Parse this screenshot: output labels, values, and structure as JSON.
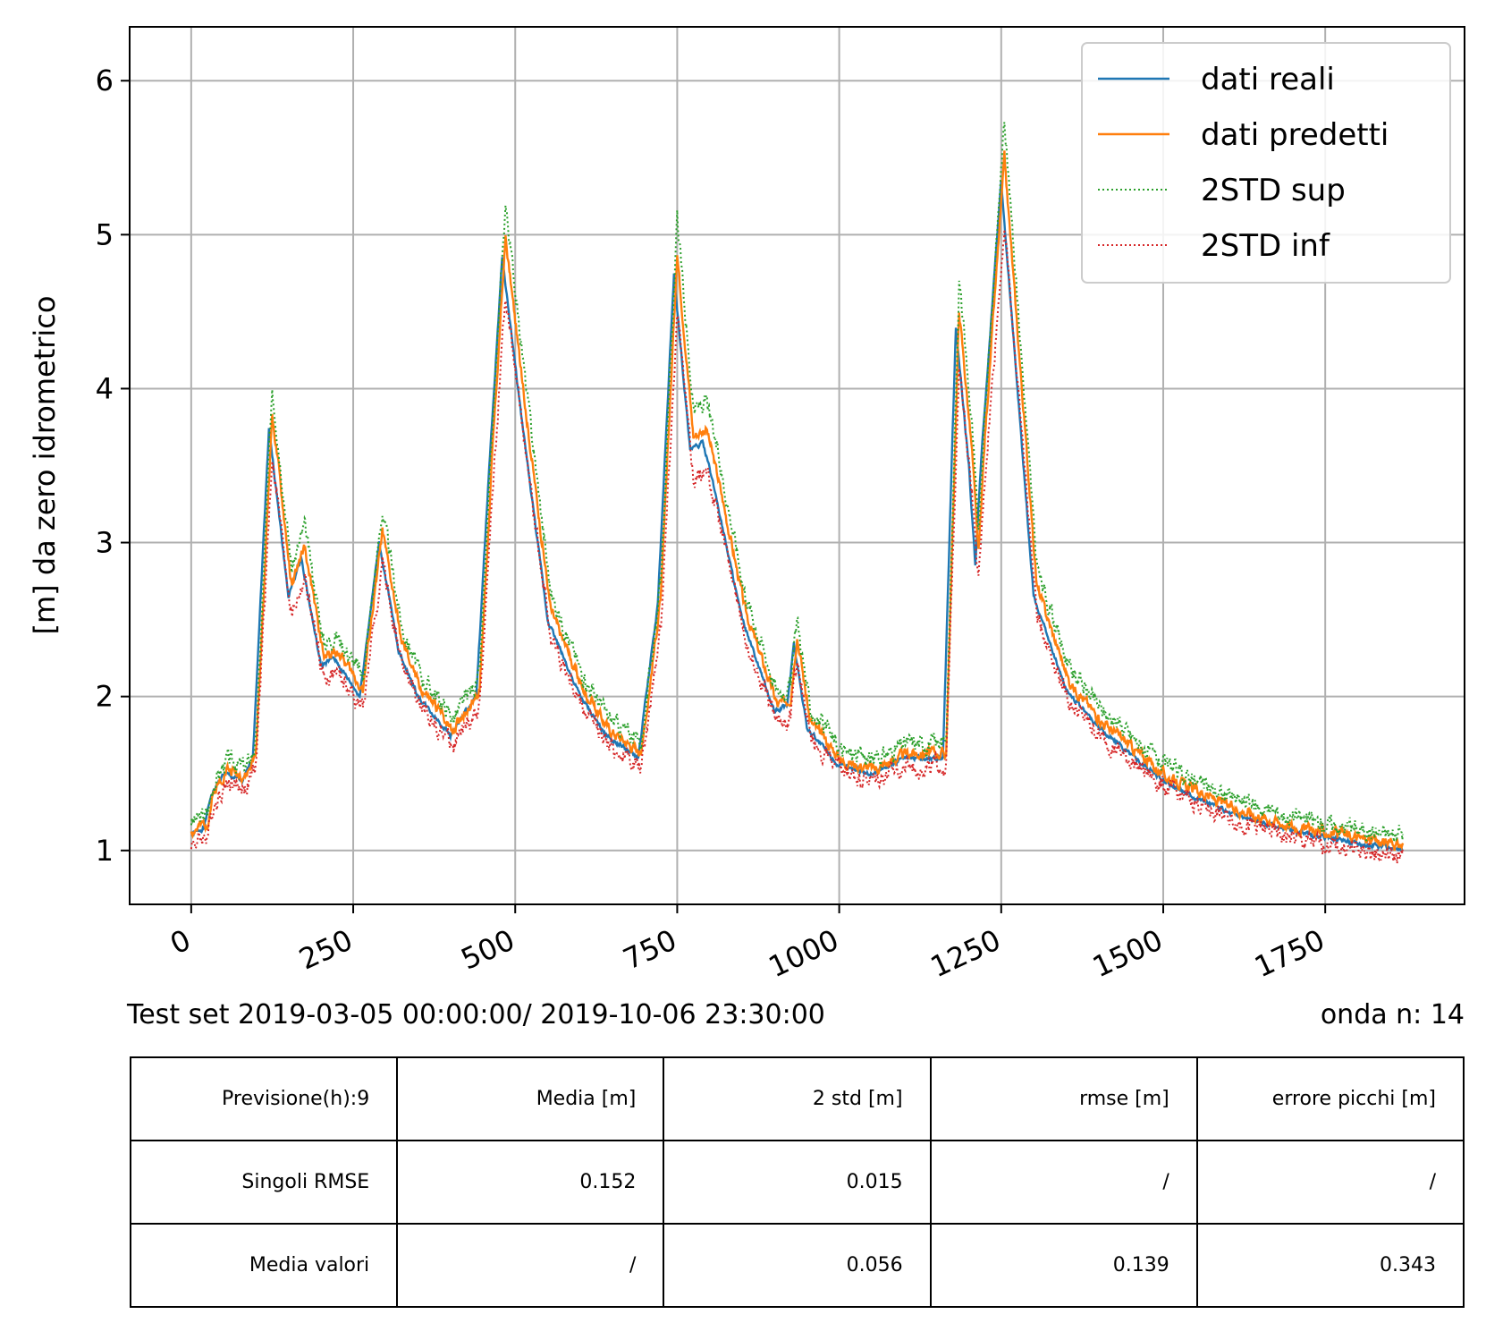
{
  "chart_data": {
    "type": "line",
    "xlim": [
      -95,
      1965
    ],
    "ylim": [
      0.65,
      6.35
    ],
    "x_ticks": [
      0,
      250,
      500,
      750,
      1000,
      1250,
      1500,
      1750
    ],
    "x_tick_labels": [
      "0",
      "250",
      "500",
      "750",
      "1000",
      "1250",
      "1500",
      "1750"
    ],
    "y_ticks": [
      1,
      2,
      3,
      4,
      5,
      6
    ],
    "y_tick_labels": [
      "1",
      "2",
      "3",
      "4",
      "5",
      "6"
    ],
    "ylabel": "[m] da zero idrometrico",
    "grid": true,
    "legend_position": "top-right",
    "series_keypoints": {
      "x": [
        0,
        20,
        30,
        50,
        80,
        95,
        120,
        150,
        170,
        200,
        220,
        260,
        290,
        320,
        350,
        400,
        440,
        460,
        480,
        510,
        550,
        600,
        640,
        690,
        720,
        745,
        770,
        790,
        810,
        850,
        900,
        920,
        930,
        950,
        1000,
        1050,
        1100,
        1160,
        1180,
        1200,
        1210,
        1220,
        1250,
        1300,
        1350,
        1400,
        1500,
        1600,
        1700,
        1800,
        1870
      ],
      "y": [
        1.1,
        1.15,
        1.35,
        1.5,
        1.45,
        1.6,
        3.75,
        2.65,
        2.9,
        2.2,
        2.25,
        2.0,
        3.0,
        2.3,
        2.0,
        1.75,
        2.0,
        3.5,
        4.85,
        3.8,
        2.5,
        2.0,
        1.75,
        1.6,
        2.6,
        4.75,
        3.6,
        3.65,
        3.3,
        2.5,
        1.9,
        1.95,
        2.35,
        1.8,
        1.55,
        1.5,
        1.6,
        1.6,
        4.4,
        3.5,
        2.85,
        3.6,
        5.35,
        2.65,
        2.05,
        1.8,
        1.45,
        1.25,
        1.12,
        1.05,
        1.0
      ]
    },
    "series": [
      {
        "name": "dati reali",
        "color": "#1f77b4",
        "style": "solid",
        "seed": 1,
        "noise": 0.012,
        "bias": 0.0,
        "scale": 0.0,
        "lag": 0
      },
      {
        "name": "dati predetti",
        "color": "#ff7f0e",
        "style": "solid",
        "seed": 2,
        "noise": 0.028,
        "bias": 0.03,
        "scale": 0.03,
        "lag": 5
      },
      {
        "name": "2STD sup",
        "color": "#2ca02c",
        "style": "dotted",
        "seed": 3,
        "noise": 0.045,
        "bias": 0.09,
        "scale": 0.08,
        "lag": 5
      },
      {
        "name": "2STD inf",
        "color": "#d62728",
        "style": "dotted",
        "seed": 4,
        "noise": 0.045,
        "bias": -0.05,
        "scale": -0.06,
        "lag": 5
      }
    ],
    "n_points": 1871
  },
  "caption_left": "Test set  2019-03-05 00:00:00/ 2019-10-06 23:30:00",
  "caption_right": "onda n: 14",
  "table": {
    "header": [
      "Previsione(h):9",
      "Media [m]",
      "2 std [m]",
      "rmse [m]",
      "errore picchi [m]"
    ],
    "rows": [
      [
        "Singoli RMSE",
        "0.152",
        "0.015",
        "/",
        "/"
      ],
      [
        "Media valori",
        "/",
        "0.056",
        "0.139",
        "0.343"
      ]
    ]
  }
}
